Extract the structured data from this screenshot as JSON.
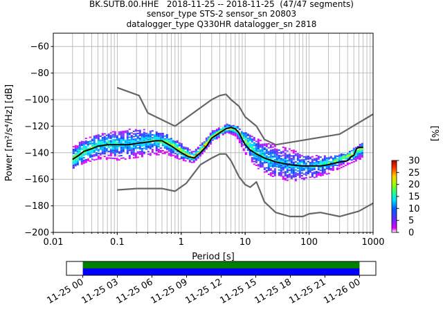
{
  "title": {
    "line1": "BK.SUTB.00.HHE   2018-11-25 -- 2018-11-25  (47/47 segments)",
    "line2": "sensor_type STS-2 sensor_sn 20803",
    "line3": "datalogger_type Q330HR datalogger_sn 2818"
  },
  "chart_data": [
    {
      "type": "heatmap",
      "xlabel": "Period [s]",
      "ylabel": "Power [m²/s⁴/Hz] [dB]",
      "xscale": "log",
      "xlim": [
        0.01,
        1000
      ],
      "ylim": [
        -200,
        -50
      ],
      "xticks": [
        0.01,
        0.1,
        1,
        10,
        100,
        1000
      ],
      "xtick_labels": [
        "0.01",
        "0.1",
        "1",
        "10",
        "100",
        "1000"
      ],
      "yticks": [
        -200,
        -180,
        -160,
        -140,
        -120,
        -100,
        -80,
        -60
      ],
      "ytick_labels": [
        "−200",
        "−180",
        "−160",
        "−140",
        "−120",
        "−100",
        "−80",
        "−60"
      ],
      "grid": true,
      "colorbar": {
        "label": "[%]",
        "ticks": [
          0,
          5,
          10,
          15,
          20,
          25,
          30
        ],
        "tick_labels": [
          "0",
          "5",
          "10",
          "15",
          "20",
          "25",
          "30"
        ],
        "range": [
          0,
          30
        ]
      },
      "density": [
        {
          "x": 0.02,
          "y": -145,
          "low": -152,
          "high": -136,
          "spread": 0.35
        },
        {
          "x": 0.03,
          "y": -139,
          "low": -148,
          "high": -130,
          "spread": 0.55
        },
        {
          "x": 0.05,
          "y": -134,
          "low": -145,
          "high": -126,
          "spread": 0.75
        },
        {
          "x": 0.1,
          "y": -134,
          "low": -146,
          "high": -124,
          "spread": 0.85
        },
        {
          "x": 0.2,
          "y": -133,
          "low": -144,
          "high": -122,
          "spread": 0.9
        },
        {
          "x": 0.35,
          "y": -131,
          "low": -142,
          "high": -124,
          "spread": 0.7
        },
        {
          "x": 0.6,
          "y": -133,
          "low": -142,
          "high": -127,
          "spread": 0.55
        },
        {
          "x": 1,
          "y": -140,
          "low": -146,
          "high": -134,
          "spread": 0.4
        },
        {
          "x": 1.5,
          "y": -144,
          "low": -148,
          "high": -140,
          "spread": 0.3
        },
        {
          "x": 2,
          "y": -138,
          "low": -142,
          "high": -134,
          "spread": 0.25
        },
        {
          "x": 3,
          "y": -128,
          "low": -132,
          "high": -124,
          "spread": 0.25
        },
        {
          "x": 5,
          "y": -122,
          "low": -125,
          "high": -119,
          "spread": 0.2
        },
        {
          "x": 7,
          "y": -123,
          "low": -128,
          "high": -120,
          "spread": 0.3
        },
        {
          "x": 10,
          "y": -132,
          "low": -142,
          "high": -125,
          "spread": 0.6
        },
        {
          "x": 15,
          "y": -141,
          "low": -152,
          "high": -130,
          "spread": 0.8
        },
        {
          "x": 25,
          "y": -146,
          "low": -158,
          "high": -134,
          "spread": 0.95
        },
        {
          "x": 50,
          "y": -150,
          "low": -162,
          "high": -138,
          "spread": 1.0
        },
        {
          "x": 100,
          "y": -151,
          "low": -160,
          "high": -142,
          "spread": 0.95
        },
        {
          "x": 200,
          "y": -148,
          "low": -156,
          "high": -143,
          "spread": 0.7
        },
        {
          "x": 400,
          "y": -143,
          "low": -149,
          "high": -140,
          "spread": 0.5
        },
        {
          "x": 700,
          "y": -137,
          "low": -144,
          "high": -132,
          "spread": 0.6
        }
      ],
      "series": [
        {
          "name": "",
          "color": "#000000",
          "points": [
            [
              0.02,
              -145
            ],
            [
              0.025,
              -142
            ],
            [
              0.03,
              -139
            ],
            [
              0.04,
              -137
            ],
            [
              0.05,
              -135
            ],
            [
              0.07,
              -134
            ],
            [
              0.1,
              -134
            ],
            [
              0.15,
              -134
            ],
            [
              0.2,
              -133
            ],
            [
              0.3,
              -132
            ],
            [
              0.4,
              -131
            ],
            [
              0.5,
              -131
            ],
            [
              0.7,
              -135
            ],
            [
              1,
              -140
            ],
            [
              1.3,
              -143
            ],
            [
              1.6,
              -144
            ],
            [
              2,
              -140
            ],
            [
              2.5,
              -135
            ],
            [
              3,
              -129
            ],
            [
              4,
              -125
            ],
            [
              5,
              -122
            ],
            [
              6,
              -121
            ],
            [
              7,
              -122
            ],
            [
              8,
              -125
            ],
            [
              9,
              -130
            ],
            [
              10,
              -134
            ],
            [
              12,
              -138
            ],
            [
              15,
              -141
            ],
            [
              20,
              -144
            ],
            [
              30,
              -147
            ],
            [
              50,
              -149
            ],
            [
              80,
              -150
            ],
            [
              100,
              -150
            ],
            [
              150,
              -150
            ],
            [
              200,
              -149
            ],
            [
              300,
              -147
            ],
            [
              400,
              -146
            ],
            [
              450,
              -143
            ],
            [
              500,
              -142
            ],
            [
              550,
              -137
            ],
            [
              600,
              -136
            ],
            [
              700,
              -136
            ]
          ]
        },
        {
          "name": "",
          "color": "#666666",
          "points": [
            [
              0.1,
              -91
            ],
            [
              0.22,
              -97
            ],
            [
              0.3,
              -110
            ],
            [
              0.8,
              -120
            ],
            [
              3,
              -100
            ],
            [
              4,
              -97
            ],
            [
              5,
              -96
            ],
            [
              6,
              -100
            ],
            [
              8,
              -105
            ],
            [
              10,
              -113
            ],
            [
              15,
              -120
            ],
            [
              20,
              -130
            ],
            [
              30,
              -134
            ],
            [
              300,
              -126
            ],
            [
              1000,
              -111
            ]
          ]
        },
        {
          "name": "",
          "color": "#666666",
          "points": [
            [
              0.1,
              -168
            ],
            [
              0.2,
              -167
            ],
            [
              0.5,
              -167
            ],
            [
              0.8,
              -169
            ],
            [
              1.2,
              -163
            ],
            [
              2,
              -149
            ],
            [
              3,
              -144
            ],
            [
              4,
              -141
            ],
            [
              5,
              -141
            ],
            [
              6,
              -146
            ],
            [
              8,
              -158
            ],
            [
              10,
              -164
            ],
            [
              12,
              -166
            ],
            [
              15,
              -162
            ],
            [
              20,
              -177
            ],
            [
              30,
              -185
            ],
            [
              50,
              -188
            ],
            [
              80,
              -188
            ],
            [
              100,
              -186
            ],
            [
              150,
              -185
            ],
            [
              300,
              -188
            ],
            [
              600,
              -184
            ],
            [
              1000,
              -178
            ]
          ]
        }
      ]
    },
    {
      "type": "timeline",
      "xlim": [
        "2018-11-24T22:35",
        "2018-11-26T01:25"
      ],
      "xtick_labels": [
        "11-25 00",
        "11-25 03",
        "11-25 06",
        "11-25 09",
        "11-25 12",
        "11-25 15",
        "11-25 18",
        "11-25 21",
        "11-26 00"
      ],
      "coverage": {
        "start": "2018-11-25T00:00",
        "end": "2018-11-25T24:00"
      },
      "colors": {
        "upper": "#008000",
        "lower": "#0000ff"
      }
    }
  ]
}
